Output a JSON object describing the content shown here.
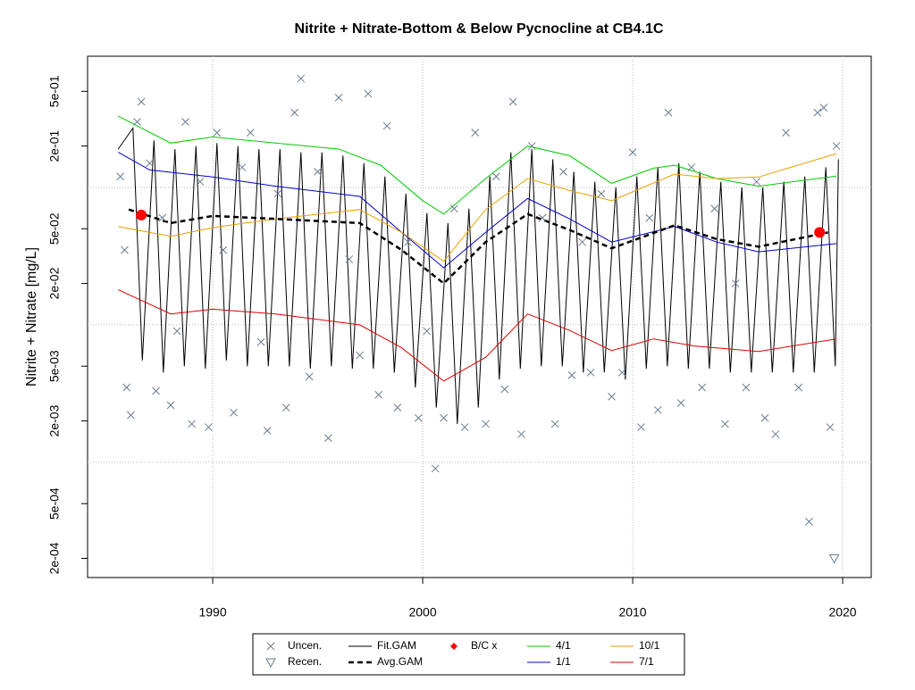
{
  "chart_data": {
    "type": "line",
    "title": "Nitrite + Nitrate-Bottom & Below Pycnocline at CB4.1C",
    "y_label": "Nitrite + Nitrate [mg/L]",
    "ylog": true,
    "grid": true,
    "legend": "bottom",
    "xlim": [
      1984.04,
      2021.36
    ],
    "ylim": [
      0.000145,
      0.9
    ],
    "xticks": [
      1990,
      2000,
      2010,
      2020
    ],
    "yticks": [
      {
        "value": 0.0002,
        "label": "2e-04"
      },
      {
        "value": 0.0005,
        "label": "5e-04"
      },
      {
        "value": 0.002,
        "label": "2e-03"
      },
      {
        "value": 0.005,
        "label": "5e-03"
      },
      {
        "value": 0.02,
        "label": "2e-02"
      },
      {
        "value": 0.05,
        "label": "5e-02"
      },
      {
        "value": 0.2,
        "label": "2e-01"
      },
      {
        "value": 0.5,
        "label": "5e-01"
      }
    ],
    "ygrid": [
      0.001,
      0.01,
      0.1
    ],
    "series": [
      {
        "name": "Uncen.",
        "color": "#6b7b8c",
        "style": "points",
        "marker": "x",
        "x": [
          1985.6,
          1985.8,
          1985.9,
          1986.1,
          1986.4,
          1986.6,
          1987.0,
          1987.3,
          1987.6,
          1988.0,
          1988.3,
          1988.7,
          1989.0,
          1989.4,
          1989.8,
          1990.2,
          1990.5,
          1991.0,
          1991.4,
          1991.8,
          1992.3,
          1992.6,
          1993.1,
          1993.5,
          1993.9,
          1994.2,
          1994.6,
          1995.0,
          1995.5,
          1996.0,
          1996.5,
          1997.0,
          1997.4,
          1997.9,
          1998.3,
          1998.8,
          1999.3,
          1999.8,
          2000.2,
          2000.6,
          2001.0,
          2001.5,
          2002.0,
          2002.5,
          2003.0,
          2003.5,
          2003.9,
          2004.3,
          2004.7,
          2005.2,
          2005.7,
          2006.3,
          2006.7,
          2007.1,
          2007.6,
          2008.0,
          2008.5,
          2009.0,
          2009.5,
          2010.0,
          2010.4,
          2010.8,
          2011.2,
          2011.7,
          2012.3,
          2012.8,
          2013.3,
          2013.9,
          2014.4,
          2014.9,
          2015.4,
          2015.9,
          2016.3,
          2016.8,
          2017.3,
          2017.9,
          2018.4,
          2018.8,
          2019.1,
          2019.4,
          2019.7
        ],
        "values": [
          0.12,
          0.035,
          0.0035,
          0.0022,
          0.3,
          0.42,
          0.15,
          0.0033,
          0.06,
          0.0026,
          0.009,
          0.3,
          0.0019,
          0.11,
          0.0018,
          0.25,
          0.035,
          0.0023,
          0.14,
          0.25,
          0.0075,
          0.0017,
          0.09,
          0.0025,
          0.35,
          0.62,
          0.0042,
          0.13,
          0.0015,
          0.45,
          0.03,
          0.006,
          0.48,
          0.0031,
          0.28,
          0.0025,
          0.04,
          0.0021,
          0.009,
          0.0009,
          0.0021,
          0.07,
          0.0018,
          0.25,
          0.0019,
          0.12,
          0.0034,
          0.42,
          0.0016,
          0.2,
          0.06,
          0.0019,
          0.13,
          0.0043,
          0.04,
          0.0045,
          0.09,
          0.003,
          0.0045,
          0.18,
          0.0018,
          0.06,
          0.0024,
          0.35,
          0.0027,
          0.14,
          0.0035,
          0.07,
          0.0019,
          0.02,
          0.0035,
          0.11,
          0.0021,
          0.0016,
          0.25,
          0.0035,
          0.00037,
          0.35,
          0.38,
          0.0018,
          0.2
        ]
      },
      {
        "name": "Recen.",
        "color": "#6b7b8c",
        "style": "points",
        "marker": "triangle",
        "x": [
          2019.6
        ],
        "values": [
          0.0002
        ]
      },
      {
        "name": "Fit.GAM",
        "color": "#000000",
        "style": "line",
        "x": [
          1985.5,
          1986.2,
          1986.65,
          1987.2,
          1987.65,
          1988.2,
          1988.65,
          1989.2,
          1989.65,
          1990.2,
          1990.65,
          1991.2,
          1991.65,
          1992.2,
          1992.65,
          1993.2,
          1993.65,
          1994.2,
          1994.65,
          1995.2,
          1995.65,
          1996.2,
          1996.65,
          1997.2,
          1997.65,
          1998.2,
          1998.65,
          1999.2,
          1999.65,
          2000.2,
          2000.65,
          2001.2,
          2001.65,
          2002.2,
          2002.65,
          2003.2,
          2003.65,
          2004.2,
          2004.65,
          2005.2,
          2005.65,
          2006.2,
          2006.65,
          2007.2,
          2007.65,
          2008.2,
          2008.65,
          2009.2,
          2009.65,
          2010.2,
          2010.65,
          2011.2,
          2011.65,
          2012.2,
          2012.65,
          2013.2,
          2013.65,
          2014.2,
          2014.65,
          2015.2,
          2015.65,
          2016.2,
          2016.65,
          2017.2,
          2017.65,
          2018.2,
          2018.65,
          2019.2,
          2019.65,
          2019.8
        ],
        "values": [
          0.19,
          0.27,
          0.0055,
          0.22,
          0.0045,
          0.19,
          0.005,
          0.2,
          0.0048,
          0.21,
          0.0055,
          0.2,
          0.005,
          0.19,
          0.005,
          0.19,
          0.005,
          0.18,
          0.0048,
          0.18,
          0.005,
          0.17,
          0.0048,
          0.15,
          0.0048,
          0.12,
          0.0045,
          0.09,
          0.0035,
          0.065,
          0.0025,
          0.055,
          0.0019,
          0.07,
          0.0025,
          0.12,
          0.004,
          0.18,
          0.0048,
          0.19,
          0.005,
          0.16,
          0.005,
          0.13,
          0.0045,
          0.11,
          0.0045,
          0.1,
          0.004,
          0.12,
          0.0048,
          0.14,
          0.005,
          0.15,
          0.0048,
          0.13,
          0.0048,
          0.11,
          0.0045,
          0.1,
          0.0045,
          0.1,
          0.0045,
          0.11,
          0.0045,
          0.12,
          0.0045,
          0.14,
          0.005,
          0.16
        ]
      },
      {
        "name": "Avg.GAM",
        "color": "#000000",
        "style": "dashed",
        "x": [
          1986,
          1988,
          1990,
          1993,
          1997,
          1999,
          2001,
          2003,
          2005,
          2007,
          2009,
          2012,
          2014,
          2016,
          2019.3
        ],
        "values": [
          0.069,
          0.055,
          0.062,
          0.059,
          0.055,
          0.035,
          0.02,
          0.04,
          0.064,
          0.049,
          0.036,
          0.053,
          0.042,
          0.037,
          0.047
        ]
      },
      {
        "name": "B/C x",
        "color": "#ff0000",
        "style": "points",
        "marker": "dot",
        "x": [
          1986.6,
          2018.9
        ],
        "values": [
          0.063,
          0.047
        ]
      },
      {
        "name": "1/1",
        "color": "#0000cc",
        "style": "line",
        "x": [
          1985.5,
          1987,
          1990,
          1993,
          1997,
          1999,
          2001,
          2003,
          2005,
          2007,
          2009,
          2012,
          2014,
          2016,
          2019.7
        ],
        "values": [
          0.18,
          0.134,
          0.119,
          0.102,
          0.086,
          0.047,
          0.026,
          0.047,
          0.083,
          0.059,
          0.04,
          0.052,
          0.04,
          0.034,
          0.039
        ]
      },
      {
        "name": "4/1",
        "color": "#00cc00",
        "style": "line",
        "x": [
          1985.5,
          1988,
          1990,
          1993,
          1996,
          1998,
          2000,
          2001,
          2003,
          2005,
          2007,
          2009,
          2011,
          2012,
          2014,
          2016,
          2019.7
        ],
        "values": [
          0.33,
          0.21,
          0.233,
          0.21,
          0.19,
          0.145,
          0.08,
          0.064,
          0.116,
          0.2,
          0.17,
          0.107,
          0.138,
          0.145,
          0.116,
          0.102,
          0.121
        ]
      },
      {
        "name": "7/1",
        "color": "#dd0000",
        "style": "line",
        "x": [
          1985.5,
          1988,
          1990,
          1993,
          1997,
          1999,
          2001,
          2003,
          2005,
          2007,
          2009,
          2011,
          2013,
          2016,
          2019.7
        ],
        "values": [
          0.018,
          0.012,
          0.013,
          0.012,
          0.01,
          0.0068,
          0.0039,
          0.0058,
          0.012,
          0.0091,
          0.0065,
          0.0079,
          0.007,
          0.0064,
          0.0079
        ]
      },
      {
        "name": "10/1",
        "color": "#e8a000",
        "style": "line",
        "x": [
          1985.5,
          1988,
          1990,
          1993,
          1997,
          1999,
          2001,
          2003,
          2005,
          2007,
          2009,
          2012,
          2014,
          2016,
          2019.7
        ],
        "values": [
          0.052,
          0.044,
          0.051,
          0.059,
          0.069,
          0.047,
          0.029,
          0.069,
          0.116,
          0.095,
          0.08,
          0.125,
          0.116,
          0.119,
          0.176
        ]
      }
    ]
  }
}
